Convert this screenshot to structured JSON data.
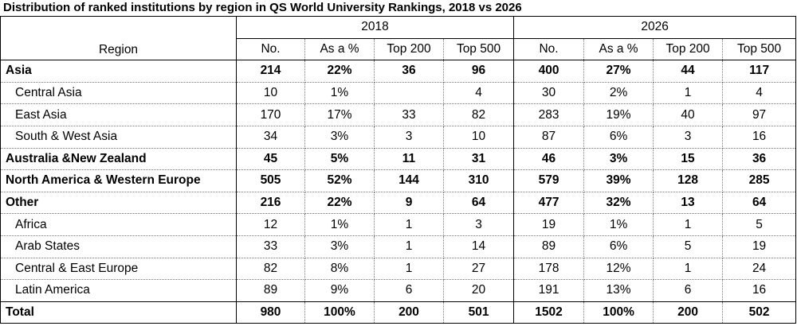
{
  "caption": "Distribution of ranked institutions by region in QS World University Rankings, 2018 vs 2026",
  "header": {
    "region_label": "Region",
    "years": [
      "2018",
      "2026"
    ],
    "columns": [
      "No.",
      "As a %",
      "Top 200",
      "Top 500"
    ]
  },
  "rows": [
    {
      "region": "Asia",
      "bold": true,
      "sub": false,
      "y2018": [
        "214",
        "22%",
        "36",
        "96"
      ],
      "y2026": [
        "400",
        "27%",
        "44",
        "117"
      ]
    },
    {
      "region": "Central Asia",
      "bold": false,
      "sub": true,
      "y2018": [
        "10",
        "1%",
        "",
        "4"
      ],
      "y2026": [
        "30",
        "2%",
        "1",
        "4"
      ]
    },
    {
      "region": "East Asia",
      "bold": false,
      "sub": true,
      "y2018": [
        "170",
        "17%",
        "33",
        "82"
      ],
      "y2026": [
        "283",
        "19%",
        "40",
        "97"
      ]
    },
    {
      "region": "South & West Asia",
      "bold": false,
      "sub": true,
      "y2018": [
        "34",
        "3%",
        "3",
        "10"
      ],
      "y2026": [
        "87",
        "6%",
        "3",
        "16"
      ]
    },
    {
      "region": "Australia &New Zealand",
      "bold": true,
      "sub": false,
      "y2018": [
        "45",
        "5%",
        "11",
        "31"
      ],
      "y2026": [
        "46",
        "3%",
        "15",
        "36"
      ]
    },
    {
      "region": "North America & Western Europe",
      "bold": true,
      "sub": false,
      "y2018": [
        "505",
        "52%",
        "144",
        "310"
      ],
      "y2026": [
        "579",
        "39%",
        "128",
        "285"
      ]
    },
    {
      "region": "Other",
      "bold": true,
      "sub": false,
      "y2018": [
        "216",
        "22%",
        "9",
        "64"
      ],
      "y2026": [
        "477",
        "32%",
        "13",
        "64"
      ]
    },
    {
      "region": "Africa",
      "bold": false,
      "sub": true,
      "y2018": [
        "12",
        "1%",
        "1",
        "3"
      ],
      "y2026": [
        "19",
        "1%",
        "1",
        "5"
      ]
    },
    {
      "region": "Arab States",
      "bold": false,
      "sub": true,
      "y2018": [
        "33",
        "3%",
        "1",
        "14"
      ],
      "y2026": [
        "89",
        "6%",
        "5",
        "19"
      ]
    },
    {
      "region": "Central & East Europe",
      "bold": false,
      "sub": true,
      "y2018": [
        "82",
        "8%",
        "1",
        "27"
      ],
      "y2026": [
        "178",
        "12%",
        "1",
        "24"
      ]
    },
    {
      "region": "Latin America",
      "bold": false,
      "sub": true,
      "y2018": [
        "89",
        "9%",
        "6",
        "20"
      ],
      "y2026": [
        "191",
        "13%",
        "6",
        "16"
      ]
    },
    {
      "region": "Total",
      "bold": true,
      "sub": false,
      "total": true,
      "y2018": [
        "980",
        "100%",
        "200",
        "501"
      ],
      "y2026": [
        "1502",
        "100%",
        "200",
        "502"
      ]
    }
  ]
}
